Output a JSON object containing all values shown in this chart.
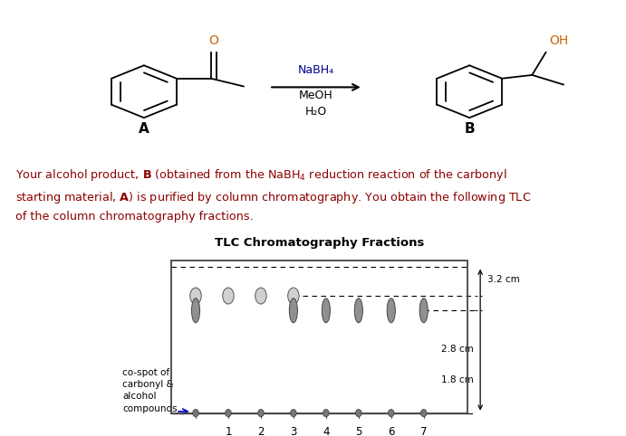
{
  "title": "TLC Chromatography Fractions",
  "background": "#ffffff",
  "text_color": "#8B0000",
  "spot_color_upper": "#d0d0d0",
  "spot_color_lower": "#909090",
  "spot_edge": "#555555",
  "nabh4_color": "#00008B",
  "oh_color": "#CC6600",
  "lane_labels": [
    "",
    "1",
    "2",
    "3",
    "4",
    "5",
    "6",
    "7"
  ],
  "upper_spot_lanes": [
    0,
    1,
    2,
    3
  ],
  "lower_spot_lanes": [
    0,
    3,
    4,
    5,
    6,
    7
  ],
  "cospot_label": "co-spot of\ncarbonyl &\nalcohol\ncompounds",
  "dim_32": "3.2 cm",
  "dim_28": "2.8 cm",
  "dim_18": "1.8 cm"
}
